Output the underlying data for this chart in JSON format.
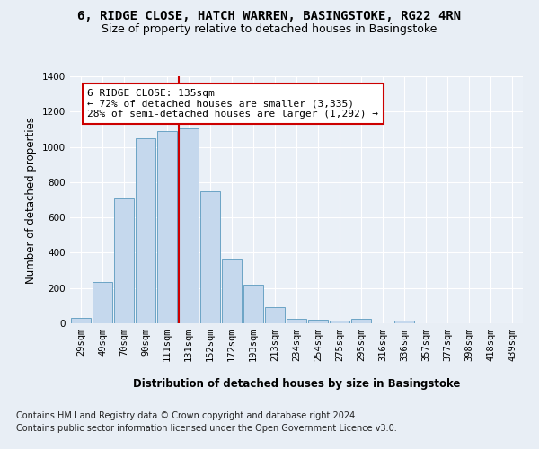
{
  "title_line1": "6, RIDGE CLOSE, HATCH WARREN, BASINGSTOKE, RG22 4RN",
  "title_line2": "Size of property relative to detached houses in Basingstoke",
  "xlabel": "Distribution of detached houses by size in Basingstoke",
  "ylabel": "Number of detached properties",
  "categories": [
    "29sqm",
    "49sqm",
    "70sqm",
    "90sqm",
    "111sqm",
    "131sqm",
    "152sqm",
    "172sqm",
    "193sqm",
    "213sqm",
    "234sqm",
    "254sqm",
    "275sqm",
    "295sqm",
    "316sqm",
    "336sqm",
    "357sqm",
    "377sqm",
    "398sqm",
    "418sqm",
    "439sqm"
  ],
  "values": [
    30,
    235,
    710,
    1050,
    1090,
    1105,
    750,
    365,
    220,
    90,
    28,
    20,
    16,
    28,
    0,
    15,
    0,
    0,
    0,
    0,
    0
  ],
  "bar_color": "#c5d8ed",
  "bar_edge_color": "#5a9abe",
  "vline_pos": 4.55,
  "vline_color": "#cc0000",
  "annotation_line1": "6 RIDGE CLOSE: 135sqm",
  "annotation_line2": "← 72% of detached houses are smaller (3,335)",
  "annotation_line3": "28% of semi-detached houses are larger (1,292) →",
  "ylim": [
    0,
    1400
  ],
  "yticks": [
    0,
    200,
    400,
    600,
    800,
    1000,
    1200,
    1400
  ],
  "bg_color": "#e8eef5",
  "plot_bg_color": "#eaf0f7",
  "footer_line1": "Contains HM Land Registry data © Crown copyright and database right 2024.",
  "footer_line2": "Contains public sector information licensed under the Open Government Licence v3.0.",
  "title_fontsize": 10,
  "subtitle_fontsize": 9,
  "axis_label_fontsize": 8.5,
  "tick_fontsize": 7.5,
  "annotation_fontsize": 8,
  "footer_fontsize": 7
}
